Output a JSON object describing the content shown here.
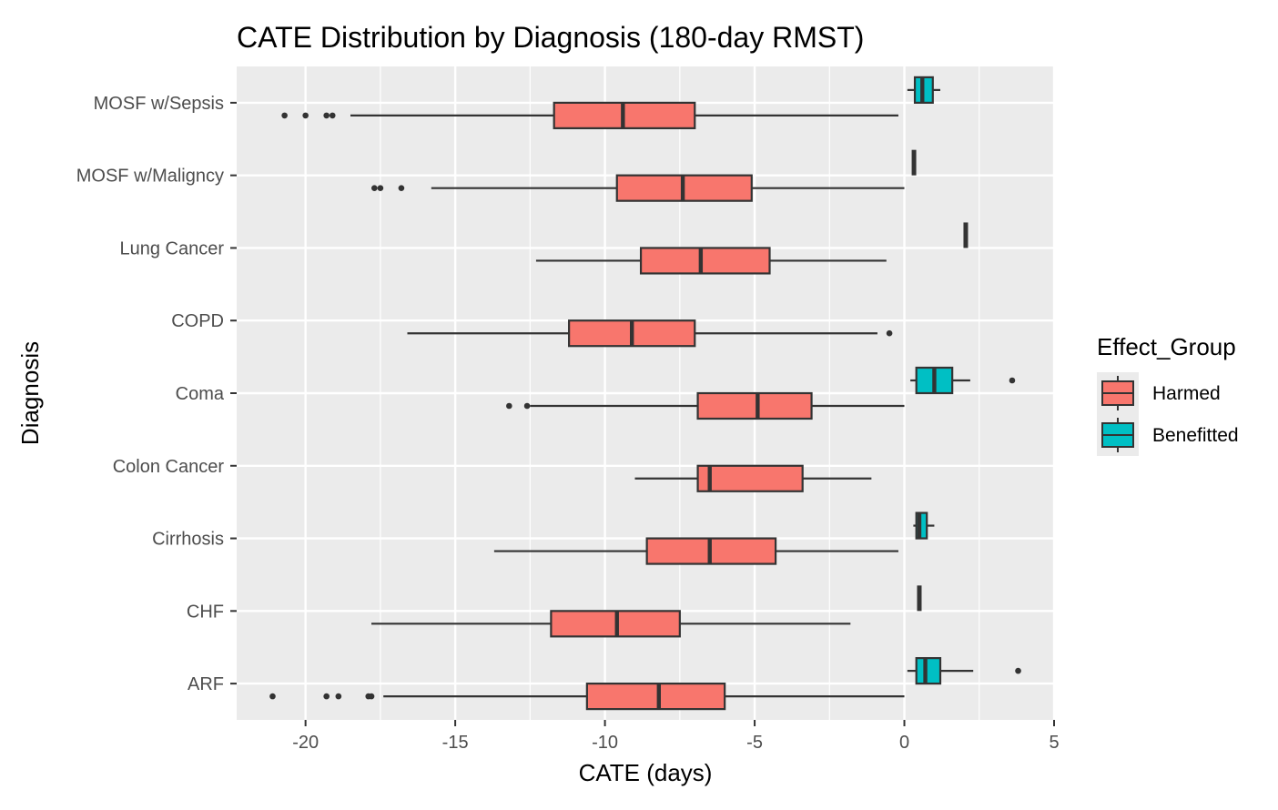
{
  "chart_data": {
    "type": "boxplot",
    "title": "CATE Distribution by Diagnosis (180-day RMST)",
    "xlabel": "CATE (days)",
    "ylabel": "Diagnosis",
    "xlim": [
      -22.3,
      5
    ],
    "xticks": [
      -20,
      -15,
      -10,
      -5,
      0,
      5
    ],
    "xtick_labels": [
      "-20",
      "-15",
      "-10",
      "-5",
      "0",
      "5"
    ],
    "orientation": "horizontal",
    "grid": true,
    "legend": {
      "title": "Effect_Group",
      "position": "right",
      "entries": [
        {
          "label": "Harmed",
          "color": "#F8766D"
        },
        {
          "label": "Benefitted",
          "color": "#00BFC4"
        }
      ]
    },
    "categories": [
      "MOSF w/Sepsis",
      "MOSF w/Malignancy",
      "Lung Cancer",
      "COPD",
      "Coma",
      "Colon Cancer",
      "Cirrhosis",
      "CHF",
      "ARF"
    ],
    "category_labels": [
      "MOSF w/Sepsis",
      "MOSF w/Maligncy",
      "Lung Cancer",
      "COPD",
      "Coma",
      "Colon Cancer",
      "Cirrhosis",
      "CHF",
      "ARF"
    ],
    "series": [
      {
        "name": "Harmed",
        "color": "#F8766D",
        "boxes": [
          {
            "category": "MOSF w/Sepsis",
            "whisker_low": -18.5,
            "q1": -11.7,
            "median": -9.4,
            "q3": -7.0,
            "whisker_high": -0.2,
            "outliers": [
              -20.7,
              -20.0,
              -19.3,
              -19.1
            ]
          },
          {
            "category": "MOSF w/Malignancy",
            "whisker_low": -15.8,
            "q1": -9.6,
            "median": -7.4,
            "q3": -5.1,
            "whisker_high": 0.0,
            "outliers": [
              -17.7,
              -17.5,
              -16.8
            ]
          },
          {
            "category": "Lung Cancer",
            "whisker_low": -12.3,
            "q1": -8.8,
            "median": -6.8,
            "q3": -4.5,
            "whisker_high": -0.6,
            "outliers": []
          },
          {
            "category": "COPD",
            "whisker_low": -16.6,
            "q1": -11.2,
            "median": -9.1,
            "q3": -7.0,
            "whisker_high": -0.9,
            "outliers": [
              -0.5
            ]
          },
          {
            "category": "Coma",
            "whisker_low": -12.5,
            "q1": -6.9,
            "median": -4.9,
            "q3": -3.1,
            "whisker_high": 0.0,
            "outliers": [
              -13.2,
              -12.6
            ]
          },
          {
            "category": "Colon Cancer",
            "whisker_low": -9.0,
            "q1": -6.9,
            "median": -6.5,
            "q3": -3.4,
            "whisker_high": -1.1,
            "outliers": []
          },
          {
            "category": "Cirrhosis",
            "whisker_low": -13.7,
            "q1": -8.6,
            "median": -6.5,
            "q3": -4.3,
            "whisker_high": -0.2,
            "outliers": []
          },
          {
            "category": "CHF",
            "whisker_low": -17.8,
            "q1": -11.8,
            "median": -9.6,
            "q3": -7.5,
            "whisker_high": -1.8,
            "outliers": []
          },
          {
            "category": "ARF",
            "whisker_low": -17.4,
            "q1": -10.6,
            "median": -8.2,
            "q3": -6.0,
            "whisker_high": 0.0,
            "outliers": [
              -21.1,
              -19.3,
              -18.9,
              -17.9,
              -17.8
            ]
          }
        ]
      },
      {
        "name": "Benefitted",
        "color": "#00BFC4",
        "boxes": [
          {
            "category": "MOSF w/Sepsis",
            "whisker_low": 0.1,
            "q1": 0.35,
            "median": 0.6,
            "q3": 0.95,
            "whisker_high": 1.2,
            "outliers": []
          },
          {
            "category": "MOSF w/Malignancy",
            "whisker_low": 0.32,
            "q1": 0.32,
            "median": 0.32,
            "q3": 0.32,
            "whisker_high": 0.32,
            "outliers": []
          },
          {
            "category": "Lung Cancer",
            "whisker_low": 2.05,
            "q1": 2.05,
            "median": 2.05,
            "q3": 2.05,
            "whisker_high": 2.05,
            "outliers": []
          },
          {
            "category": "Coma",
            "whisker_low": 0.2,
            "q1": 0.4,
            "median": 1.0,
            "q3": 1.6,
            "whisker_high": 2.2,
            "outliers": [
              3.6
            ]
          },
          {
            "category": "Cirrhosis",
            "whisker_low": 0.3,
            "q1": 0.4,
            "median": 0.5,
            "q3": 0.75,
            "whisker_high": 1.0,
            "outliers": []
          },
          {
            "category": "CHF",
            "whisker_low": 0.5,
            "q1": 0.5,
            "median": 0.5,
            "q3": 0.5,
            "whisker_high": 0.5,
            "outliers": []
          },
          {
            "category": "ARF",
            "whisker_low": 0.1,
            "q1": 0.4,
            "median": 0.7,
            "q3": 1.2,
            "whisker_high": 2.3,
            "outliers": [
              3.8
            ]
          }
        ]
      }
    ]
  }
}
